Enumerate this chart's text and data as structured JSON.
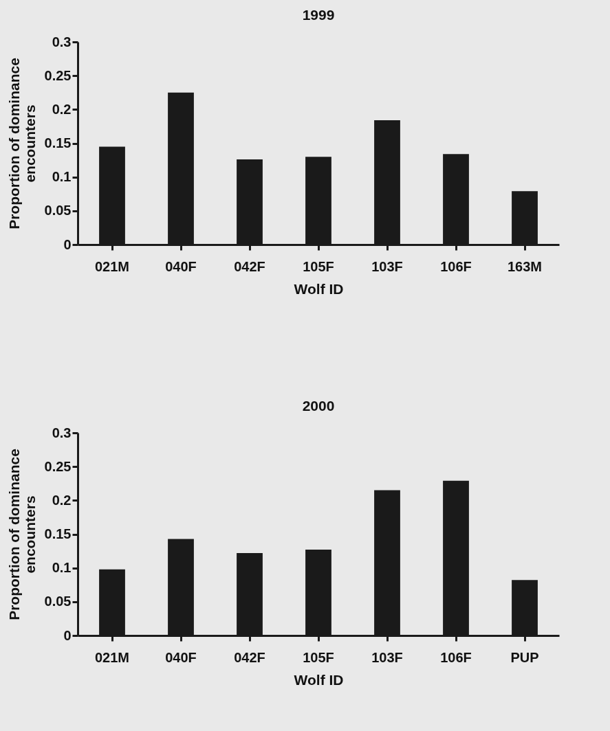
{
  "chart_data": [
    {
      "type": "bar",
      "title": "1999",
      "xlabel": "Wolf ID",
      "ylabel": "Proportion of dominance encounters",
      "categories": [
        "021M",
        "040F",
        "042F",
        "105F",
        "103F",
        "106F",
        "163M"
      ],
      "values": [
        0.145,
        0.225,
        0.126,
        0.13,
        0.184,
        0.134,
        0.079
      ],
      "color": "#1a1a1a",
      "ylim": [
        0,
        0.3
      ],
      "yticks": [
        0,
        0.05,
        0.1,
        0.15,
        0.2,
        0.25,
        0.3
      ]
    },
    {
      "type": "bar",
      "title": "2000",
      "xlabel": "Wolf ID",
      "ylabel": "Proportion of dominance encounters",
      "categories": [
        "021M",
        "040F",
        "042F",
        "105F",
        "103F",
        "106F",
        "PUP"
      ],
      "values": [
        0.098,
        0.143,
        0.122,
        0.127,
        0.215,
        0.229,
        0.082
      ],
      "color": "#1a1a1a",
      "ylim": [
        0,
        0.3
      ],
      "yticks": [
        0,
        0.05,
        0.1,
        0.15,
        0.2,
        0.25,
        0.3
      ]
    }
  ]
}
